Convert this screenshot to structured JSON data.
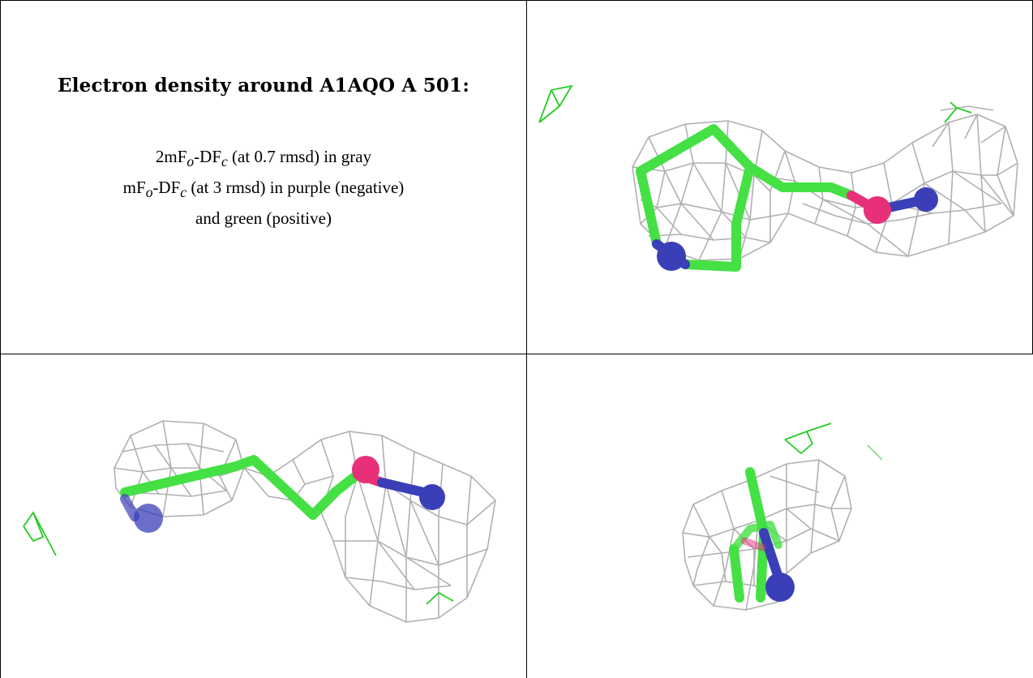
{
  "heading": "Electron density around A1AQO A 501:",
  "legend": {
    "line1": {
      "pre": "2mF",
      "sub1": "o",
      "mid": "-DF",
      "sub2": "c",
      "post": " (at 0.7 rmsd) in gray"
    },
    "line2": {
      "pre": "mF",
      "sub1": "o",
      "mid": "-DF",
      "sub2": "c",
      "post": " (at 3 rmsd) in purple (negative)"
    },
    "line3": "and green (positive)"
  },
  "colors": {
    "carbon": "#44e044",
    "nitrogen": "#3a3fb8",
    "other_atom": "#e8307a",
    "mesh": "#a8a8a8",
    "difference_positive": "#22cc22"
  },
  "panels": [
    {
      "id": "top-right",
      "view": "ligand with density mesh, view 1"
    },
    {
      "id": "bottom-left",
      "view": "ligand with density mesh, view 2"
    },
    {
      "id": "bottom-right",
      "view": "ligand with density mesh, view 3"
    }
  ]
}
